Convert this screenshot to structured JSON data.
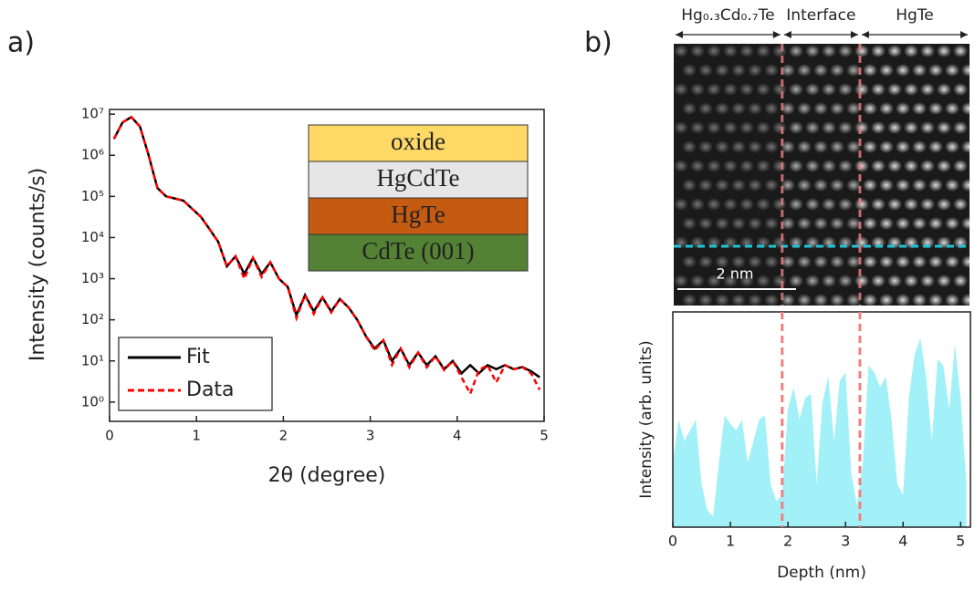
{
  "chart_data": [
    {
      "type": "line",
      "panel_label": "a)",
      "xlabel": "2θ (degree)",
      "ylabel": "Intensity (counts/s)",
      "x": [
        0.05,
        0.15,
        0.25,
        0.35,
        0.45,
        0.55,
        0.65,
        0.75,
        0.85,
        0.95,
        1.05,
        1.15,
        1.25,
        1.35,
        1.45,
        1.55,
        1.65,
        1.75,
        1.85,
        1.95,
        2.05,
        2.15,
        2.25,
        2.35,
        2.45,
        2.55,
        2.65,
        2.75,
        2.85,
        2.95,
        3.05,
        3.15,
        3.25,
        3.35,
        3.45,
        3.55,
        3.65,
        3.75,
        3.85,
        3.95,
        4.05,
        4.15,
        4.25,
        4.35,
        4.45,
        4.55,
        4.65,
        4.75,
        4.85,
        4.95
      ],
      "series": [
        {
          "name": "Fit",
          "color": "#000000",
          "dash": false,
          "values": [
            2500000.0,
            6300000.0,
            8500000.0,
            5000000.0,
            1000000.0,
            160000.0,
            100000.0,
            89000.0,
            79000.0,
            50000.0,
            32000.0,
            16000.0,
            7900.0,
            2000.0,
            3500.0,
            1300.0,
            3200.0,
            1300.0,
            2500.0,
            1000.0,
            630,
            130,
            400,
            160,
            350,
            160,
            320,
            200,
            100,
            40,
            20,
            32,
            10,
            20,
            7.9,
            16,
            7.9,
            13,
            6.3,
            10,
            5,
            7.9,
            5,
            7.9,
            6.3,
            7.9,
            6.3,
            7.1,
            5.6,
            4
          ]
        },
        {
          "name": "Data",
          "color": "#ff0000",
          "dash": true,
          "values": [
            2500000.0,
            6300000.0,
            8500000.0,
            5000000.0,
            1000000.0,
            160000.0,
            100000.0,
            89000.0,
            79000.0,
            50000.0,
            32000.0,
            16000.0,
            7900.0,
            2000.0,
            3500.0,
            1000.0,
            3200.0,
            1100.0,
            2500.0,
            1000.0,
            630,
            110,
            400,
            140,
            350,
            150,
            320,
            200,
            100,
            40,
            18,
            32,
            8,
            20,
            7,
            16,
            7,
            13,
            6,
            10,
            4,
            1.6,
            6,
            7.9,
            3,
            7.9,
            6.3,
            7.1,
            5,
            2
          ]
        }
      ],
      "xlim": [
        0,
        5
      ],
      "xticks": [
        0,
        1,
        2,
        3,
        4,
        5
      ],
      "log_y": true,
      "ylim": [
        0.34,
        13000000.0
      ],
      "yticks": [
        {
          "value": 1,
          "label": "10⁰"
        },
        {
          "value": 10,
          "label": "10¹"
        },
        {
          "value": 100,
          "label": "10²"
        },
        {
          "value": 1000,
          "label": "10³"
        },
        {
          "value": 10000,
          "label": "10⁴"
        },
        {
          "value": 100000,
          "label": "10⁵"
        },
        {
          "value": 1000000,
          "label": "10⁶"
        },
        {
          "value": 10000000,
          "label": "10⁷"
        }
      ],
      "legend": "lower left",
      "layers": [
        {
          "label": "oxide",
          "color": "#ffd966"
        },
        {
          "label": "HgCdTe",
          "color": "#e7e6e6"
        },
        {
          "label": "HgTe",
          "color": "#c55a11"
        },
        {
          "label": "CdTe (001)",
          "color": "#548235"
        }
      ]
    },
    {
      "type": "area",
      "panel_label": "b)",
      "xlabel": "Depth (nm)",
      "ylabel": "Intensity (arb. units)",
      "x": [
        0,
        0.1,
        0.2,
        0.3,
        0.4,
        0.5,
        0.6,
        0.7,
        0.8,
        0.9,
        1.0,
        1.1,
        1.2,
        1.3,
        1.4,
        1.5,
        1.6,
        1.7,
        1.8,
        1.9,
        2.0,
        2.1,
        2.2,
        2.3,
        2.4,
        2.5,
        2.6,
        2.7,
        2.8,
        2.9,
        3.0,
        3.1,
        3.2,
        3.3,
        3.4,
        3.5,
        3.6,
        3.7,
        3.8,
        3.9,
        4.0,
        4.1,
        4.2,
        4.3,
        4.4,
        4.5,
        4.6,
        4.7,
        4.8,
        4.9,
        5.0,
        5.1
      ],
      "values": [
        30,
        50,
        40,
        45,
        50,
        20,
        8,
        5,
        30,
        52,
        48,
        45,
        50,
        30,
        40,
        50,
        52,
        20,
        12,
        15,
        55,
        65,
        50,
        60,
        62,
        20,
        58,
        70,
        40,
        68,
        72,
        25,
        10,
        30,
        75,
        72,
        65,
        70,
        50,
        20,
        15,
        60,
        80,
        88,
        70,
        40,
        78,
        75,
        55,
        85,
        60,
        20
      ],
      "color": "#a3f1f8",
      "xlim": [
        0,
        5.17
      ],
      "xticks": [
        0,
        1,
        2,
        3,
        4,
        5
      ],
      "ylim": [
        0,
        100
      ],
      "interfaces": [
        1.9,
        3.25
      ],
      "interface_color": "#f08080",
      "regions": [
        "Hg₀.₃Cd₀.₇Te",
        "Interface",
        "HgTe"
      ],
      "scale_bar": "2 nm"
    }
  ]
}
